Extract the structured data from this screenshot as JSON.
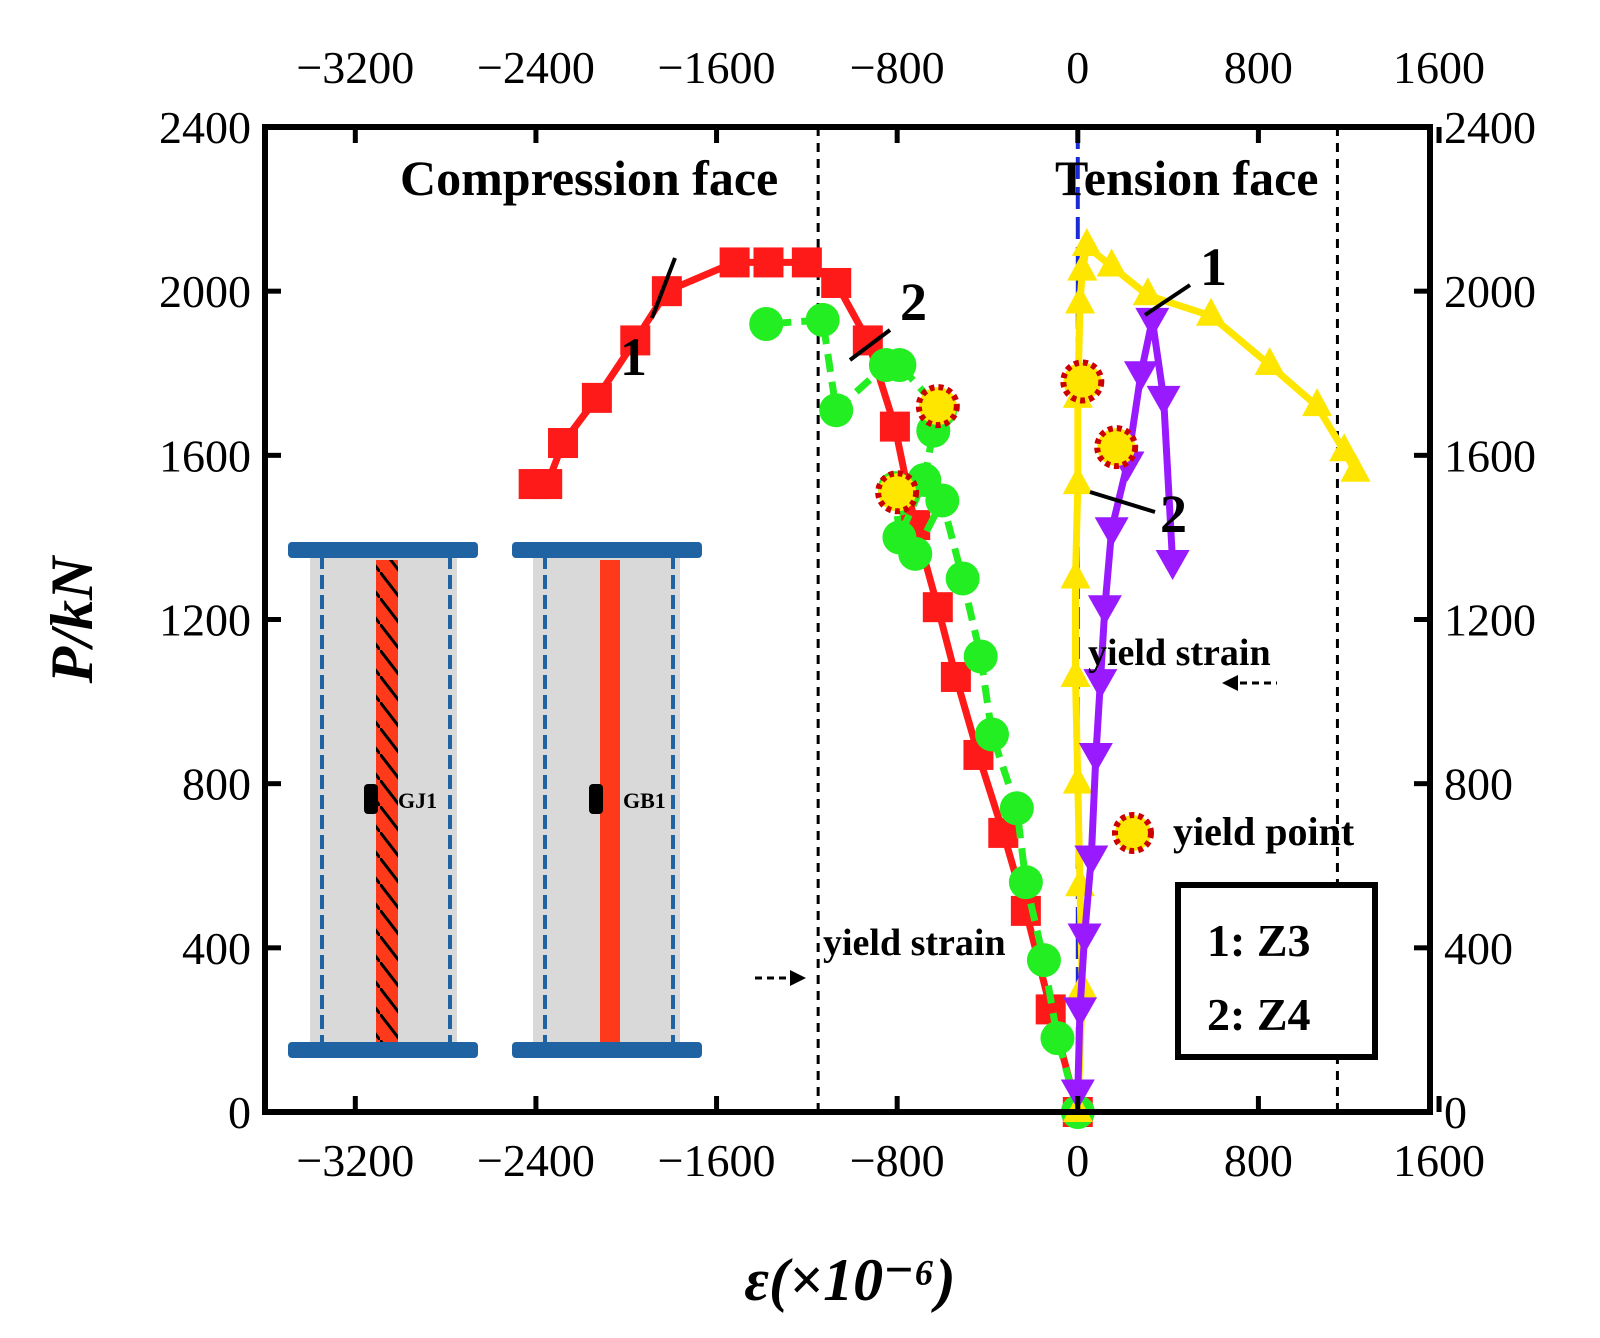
{
  "chart_data": {
    "type": "line",
    "xlabel": "ε(×10⁻⁶)",
    "ylabel": "P/kN",
    "xlim": [
      -3600,
      1560
    ],
    "ylim": [
      0,
      2400
    ],
    "xticks": [
      -3200,
      -2400,
      -1600,
      -800,
      0,
      800,
      1600
    ],
    "xtick_labels": [
      "−3200",
      "−2400",
      "−1600",
      "−800",
      "0",
      "800",
      "1600"
    ],
    "yticks": [
      0,
      400,
      800,
      1200,
      1600,
      2000,
      2400
    ],
    "ytick_labels": [
      "0",
      "400",
      "800",
      "1200",
      "1600",
      "2000",
      "2400"
    ],
    "secondary_axes": "mirrored top and right",
    "grid": false,
    "annotations": {
      "compression_face": "Compression face",
      "tension_face": "Tension face",
      "yield_strain": "yield strain",
      "yield_point": "yield point",
      "curve_tag_1": "1",
      "curve_tag_2": "2",
      "gauge_1": "GJ1",
      "gauge_2": "GB1"
    },
    "legend": {
      "position": "bottom-right",
      "entries": [
        "1: Z3",
        "2: Z4"
      ]
    },
    "yield_strain_lines": [
      -1150,
      1150
    ],
    "series": [
      {
        "tag": "1",
        "face": "compression",
        "color": "#ff1a1a",
        "marker": "square",
        "line": "solid",
        "x": [
          0,
          -120,
          -230,
          -330,
          -440,
          -540,
          -620,
          -720,
          -810,
          -930,
          -1070,
          -1200,
          -1370,
          -1520,
          -1820,
          -1960,
          -2130,
          -2280,
          -2350,
          -2410
        ],
        "y": [
          0,
          250,
          490,
          680,
          870,
          1060,
          1230,
          1430,
          1670,
          1880,
          2020,
          2070,
          2070,
          2070,
          2000,
          1880,
          1740,
          1630,
          1530,
          1530
        ]
      },
      {
        "tag": "2",
        "face": "compression",
        "color": "#22ee22",
        "marker": "circle",
        "line": "dashed",
        "x": [
          0,
          -90,
          -150,
          -230,
          -270,
          -380,
          -430,
          -510,
          -600,
          -720,
          -810,
          -790,
          -680,
          -640,
          -610,
          -790,
          -850,
          -1070,
          -1130,
          -1380
        ],
        "y": [
          0,
          180,
          370,
          560,
          740,
          920,
          1110,
          1300,
          1490,
          1360,
          1520,
          1400,
          1540,
          1660,
          1710,
          1820,
          1820,
          1710,
          1930,
          1920
        ]
      },
      {
        "tag": "1",
        "face": "tension",
        "color": "#ffe600",
        "marker": "triangle-up",
        "line": "solid",
        "x": [
          0,
          20,
          10,
          0,
          -10,
          -10,
          0,
          0,
          10,
          20,
          40,
          150,
          310,
          590,
          850,
          1060,
          1180,
          1230
        ],
        "y": [
          0,
          300,
          550,
          800,
          1060,
          1300,
          1530,
          1740,
          1970,
          2050,
          2110,
          2060,
          1990,
          1940,
          1820,
          1720,
          1610,
          1560
        ]
      },
      {
        "tag": "2",
        "face": "tension",
        "color": "#9a1aff",
        "marker": "triangle-down",
        "line": "solid",
        "x": [
          0,
          10,
          30,
          60,
          80,
          100,
          120,
          150,
          220,
          280,
          330,
          380,
          420
        ],
        "y": [
          50,
          250,
          430,
          620,
          870,
          1050,
          1230,
          1420,
          1580,
          1800,
          1930,
          1740,
          1340
        ]
      }
    ],
    "yield_points": [
      {
        "tag": "1",
        "face": "compression",
        "x": -800,
        "y": 1510
      },
      {
        "tag": "2",
        "face": "compression",
        "x": -620,
        "y": 1720
      },
      {
        "tag": "1",
        "face": "tension",
        "x": 20,
        "y": 1780
      },
      {
        "tag": "2",
        "face": "tension",
        "x": 170,
        "y": 1620
      }
    ]
  }
}
